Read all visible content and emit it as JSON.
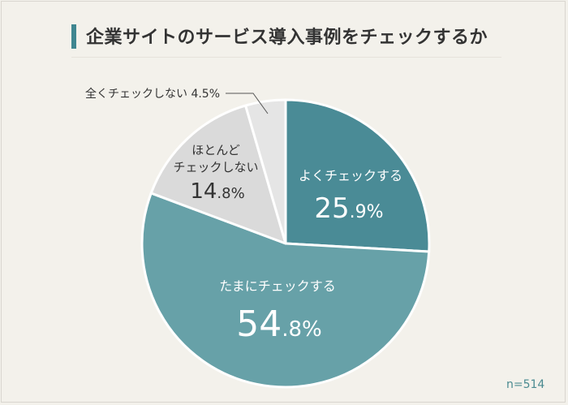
{
  "title": "企業サイトのサービス導入事例をチェックするか",
  "sample_note": "n=514",
  "colors": {
    "accent": "#3f8690",
    "slice_often": "#4a8b96",
    "slice_sometimes": "#67a1a8",
    "slice_rarely": "#dadada",
    "slice_never": "#e5e5e5",
    "background": "#f3f1eb"
  },
  "chart_data": {
    "type": "pie",
    "title": "企業サイトのサービス導入事例をチェックするか",
    "start_angle_deg": 0,
    "direction": "clockwise",
    "slices": [
      {
        "label": "よくチェックする",
        "value": 25.9,
        "value_main": "25",
        "value_sub": ".9%"
      },
      {
        "label": "たまにチェックする",
        "value": 54.8,
        "value_main": "54",
        "value_sub": ".8%"
      },
      {
        "label": "ほとんどチェックしない",
        "label_lines": [
          "ほとんど",
          "チェックしない"
        ],
        "value": 14.8,
        "value_main": "14",
        "value_sub": ".8%"
      },
      {
        "label": "全くチェックしない",
        "value": 4.5,
        "value_text": "4.5%"
      }
    ],
    "n": 514
  }
}
